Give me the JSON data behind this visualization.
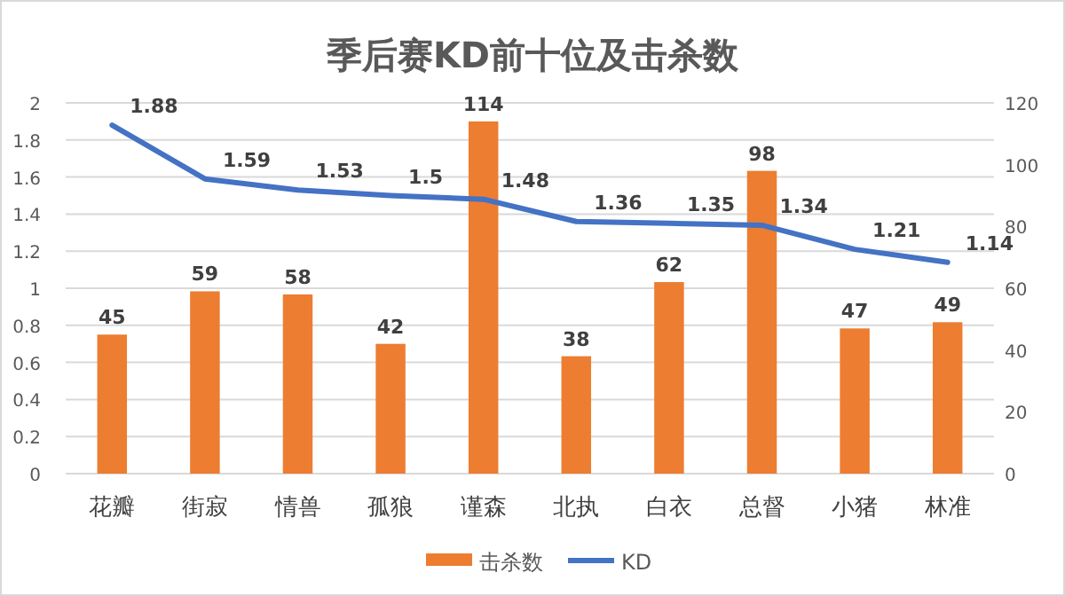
{
  "chart_data": {
    "type": "bar",
    "title": "季后赛KD前十位及击杀数",
    "categories": [
      "花瓣",
      "街寂",
      "情兽",
      "孤狼",
      "谨森",
      "北执",
      "白衣",
      "总督",
      "小猪",
      "林准"
    ],
    "series": [
      {
        "name": "击杀数",
        "axis": "y2",
        "color": "#ed7d31",
        "values": [
          45,
          59,
          58,
          42,
          114,
          38,
          62,
          98,
          47,
          49
        ]
      },
      {
        "name": "KD",
        "type": "line",
        "color": "#4472c4",
        "values": [
          1.88,
          1.59,
          1.53,
          1.5,
          1.48,
          1.36,
          1.35,
          1.34,
          1.21,
          1.14
        ]
      }
    ],
    "ylim": [
      0,
      2
    ],
    "yticks": [
      0,
      0.2,
      0.4,
      0.6,
      0.8,
      1,
      1.2,
      1.4,
      1.6,
      1.8,
      2
    ],
    "y2lim": [
      0,
      120
    ],
    "y2ticks": [
      0,
      20,
      40,
      60,
      80,
      100,
      120
    ],
    "grid": "y",
    "legend": "bottom",
    "data_labels": true,
    "marker": "none",
    "line_style": "solid"
  }
}
